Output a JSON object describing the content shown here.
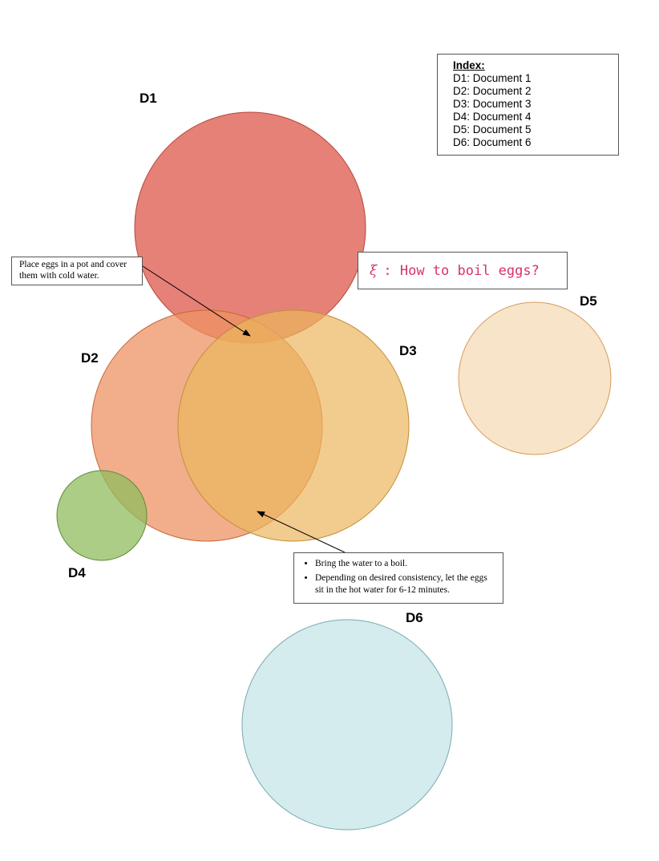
{
  "documents": [
    {
      "id": "D1",
      "label": "D1",
      "fill": "#e06b5e",
      "stroke": "#b8453a"
    },
    {
      "id": "D2",
      "label": "D2",
      "fill": "#ee9363",
      "stroke": "#c9653a"
    },
    {
      "id": "D3",
      "label": "D3",
      "fill": "#ebb65e",
      "stroke": "#c48f3a"
    },
    {
      "id": "D4",
      "label": "D4",
      "fill": "#8fbc5e",
      "stroke": "#5e8a38"
    },
    {
      "id": "D5",
      "label": "D5",
      "fill": "#f8e4c8",
      "stroke": "#d69a5a"
    },
    {
      "id": "D6",
      "label": "D6",
      "fill": "#d4ecee",
      "stroke": "#7aa9ad"
    }
  ],
  "index": {
    "title": "Index:",
    "entries": [
      "D1: Document 1",
      "D2: Document 2",
      "D3: Document 3",
      "D4: Document 4",
      "D5: Document 5",
      "D6: Document 6"
    ]
  },
  "query": {
    "symbol": "ξ",
    "text": ": How to boil eggs?"
  },
  "notes": {
    "intersection_d1_d2_d3": "Place eggs in a pot and cover them with cold water.",
    "intersection_d2_d3": [
      "Bring the water to a boil.",
      "Depending on desired consistency, let the eggs sit in the hot water for 6-12 minutes."
    ]
  }
}
